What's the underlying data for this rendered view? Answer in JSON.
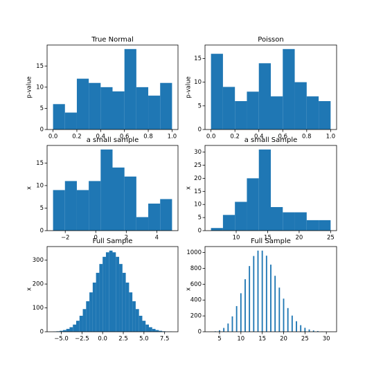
{
  "chart_data": [
    {
      "type": "histogram",
      "title": "True Normal",
      "ylabel": "p-value",
      "color": "#1f77b4",
      "bins": [
        0.0,
        0.1,
        0.2,
        0.3,
        0.4,
        0.5,
        0.6,
        0.7,
        0.8,
        0.9,
        1.0
      ],
      "values": [
        6,
        4,
        12,
        11,
        10,
        9,
        19,
        10,
        8,
        11
      ],
      "xlim": [
        -0.05,
        1.05
      ],
      "xticks": [
        {
          "value": 0,
          "label": "0.0"
        },
        {
          "value": 0.2,
          "label": "0.2"
        },
        {
          "value": 0.4,
          "label": "0.4"
        },
        {
          "value": 0.6,
          "label": "0.6"
        },
        {
          "value": 0.8,
          "label": "0.8"
        },
        {
          "value": 1,
          "label": "1.0"
        }
      ],
      "ylim": [
        0,
        19.95
      ],
      "yticks": [
        0,
        5,
        10,
        15
      ]
    },
    {
      "type": "histogram",
      "title": "Poisson",
      "ylabel": "p-value",
      "color": "#1f77b4",
      "bins": [
        0.0,
        0.1,
        0.2,
        0.3,
        0.4,
        0.5,
        0.6,
        0.7,
        0.8,
        0.9,
        1.0
      ],
      "values": [
        16,
        9,
        6,
        8,
        14,
        7,
        17,
        10,
        7,
        6
      ],
      "xlim": [
        -0.05,
        1.05
      ],
      "xticks": [
        {
          "value": 0,
          "label": "0.0"
        },
        {
          "value": 0.2,
          "label": "0.2"
        },
        {
          "value": 0.4,
          "label": "0.4"
        },
        {
          "value": 0.6,
          "label": "0.6"
        },
        {
          "value": 0.8,
          "label": "0.8"
        },
        {
          "value": 1,
          "label": "1.0"
        }
      ],
      "ylim": [
        0,
        17.85
      ],
      "yticks": [
        0,
        5,
        10,
        15
      ]
    },
    {
      "type": "histogram",
      "title": "a small sample",
      "ylabel": "x",
      "color": "#1f77b4",
      "bins": [
        -2.8,
        -2.02,
        -1.24,
        -0.46,
        0.32,
        1.1,
        1.88,
        2.66,
        3.44,
        4.22,
        5.0
      ],
      "values": [
        9,
        11,
        9,
        11,
        18,
        14,
        12,
        3,
        6,
        7
      ],
      "xlim": [
        -3.19,
        5.39
      ],
      "xticks": [
        {
          "value": -2,
          "label": "−2"
        },
        0,
        2,
        4
      ],
      "ylim": [
        0,
        18.9
      ],
      "yticks": [
        0,
        5,
        10,
        15
      ]
    },
    {
      "type": "histogram",
      "title": "a small Sample",
      "ylabel": "x",
      "color": "#1f77b4",
      "bins": [
        6.0,
        7.9,
        9.8,
        11.7,
        13.6,
        15.5,
        17.4,
        19.3,
        21.2,
        23.1,
        25.0
      ],
      "values": [
        1,
        6,
        11,
        20,
        31,
        9,
        7,
        7,
        4,
        4
      ],
      "xlim": [
        5.05,
        25.95
      ],
      "xticks": [
        10,
        15,
        20,
        25
      ],
      "ylim": [
        0,
        32.55
      ],
      "yticks": [
        0,
        5,
        10,
        15,
        20,
        25,
        30
      ]
    },
    {
      "type": "histogram",
      "title": "Full Sample",
      "ylabel": "x",
      "color": "#1f77b4",
      "bins": [
        -6.0,
        -5.6,
        -5.2,
        -4.8,
        -4.4,
        -4.0,
        -3.6,
        -3.2,
        -2.8,
        -2.4,
        -2.0,
        -1.6,
        -1.2,
        -0.8,
        -0.4,
        0.0,
        0.4,
        0.8,
        1.2,
        1.6,
        2.0,
        2.4,
        2.8,
        3.2,
        3.6,
        4.0,
        4.4,
        4.8,
        5.2,
        5.6,
        6.0,
        6.4,
        6.8,
        7.2,
        7.6,
        8.0,
        8.4
      ],
      "values": [
        1,
        2,
        4,
        7,
        12,
        19,
        30,
        46,
        67,
        95,
        128,
        165,
        206,
        247,
        284,
        314,
        333,
        340,
        333,
        314,
        284,
        247,
        206,
        165,
        128,
        95,
        67,
        46,
        30,
        19,
        12,
        7,
        4,
        2,
        1,
        1
      ],
      "xlim": [
        -6.72,
        9.12
      ],
      "xticks": [
        {
          "value": -5,
          "label": "−5.0"
        },
        {
          "value": -2.5,
          "label": "−2.5"
        },
        {
          "value": 0,
          "label": "0.0"
        },
        {
          "value": 2.5,
          "label": "2.5"
        },
        {
          "value": 5,
          "label": "5.0"
        },
        {
          "value": 7.5,
          "label": "7.5"
        }
      ],
      "ylim": [
        0,
        357
      ],
      "yticks": [
        0,
        100,
        200,
        300
      ]
    },
    {
      "type": "bar",
      "title": "Full Sample",
      "ylabel": "x",
      "color": "#1f77b4",
      "x": [
        3,
        4,
        5,
        6,
        7,
        8,
        9,
        10,
        11,
        12,
        13,
        14,
        15,
        16,
        17,
        18,
        19,
        20,
        21,
        22,
        23,
        24,
        25,
        26,
        27,
        28,
        29,
        30,
        31
      ],
      "values": [
        2,
        6,
        19,
        48,
        104,
        194,
        324,
        486,
        663,
        829,
        956,
        1024,
        1024,
        960,
        847,
        706,
        557,
        418,
        299,
        204,
        133,
        83,
        50,
        29,
        16,
        9,
        4,
        2,
        1
      ],
      "xlim": [
        1.6,
        32.4
      ],
      "xticks": [
        5,
        10,
        15,
        20,
        25,
        30
      ],
      "ylim": [
        0,
        1075
      ],
      "yticks": [
        0,
        200,
        400,
        600,
        800,
        1000
      ]
    }
  ]
}
